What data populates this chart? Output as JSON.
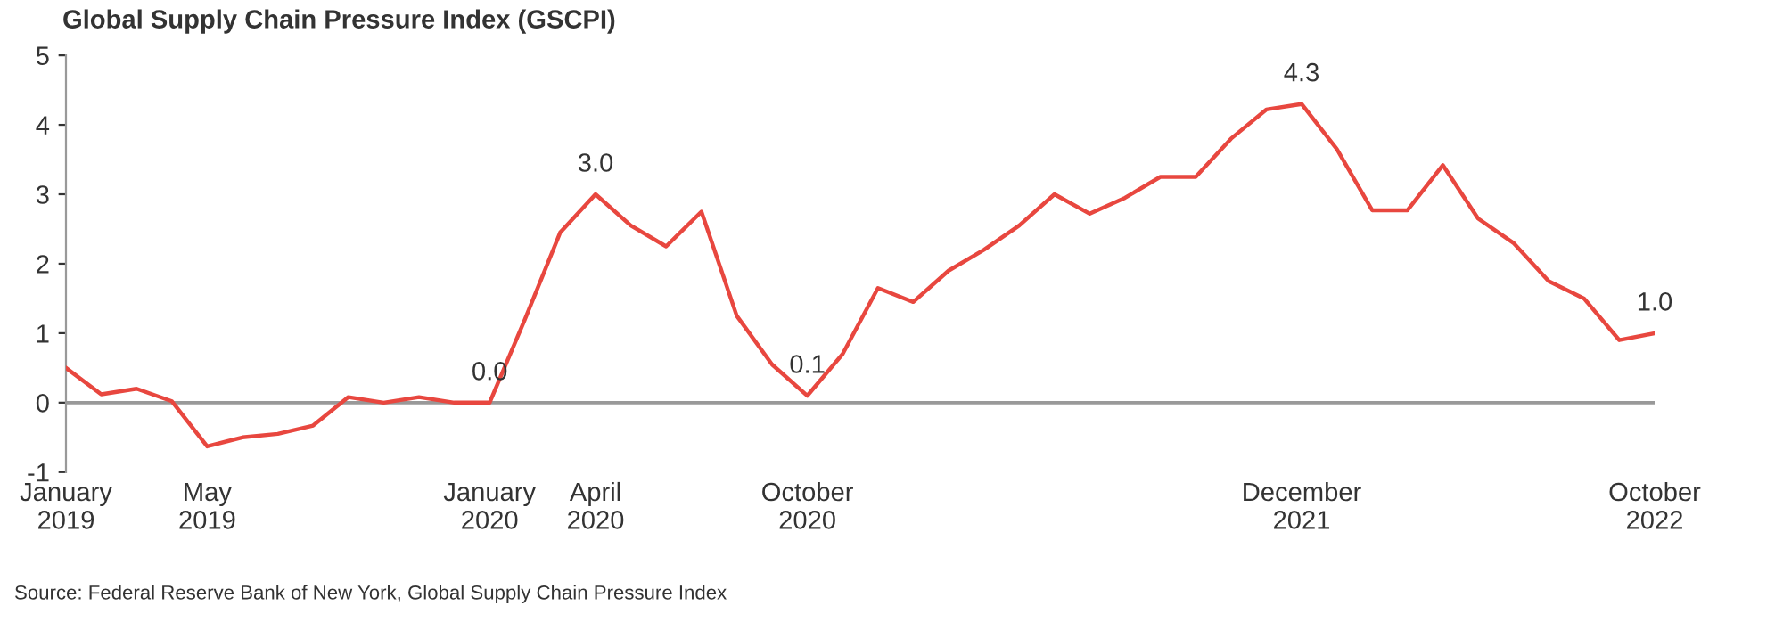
{
  "chart_data": {
    "type": "line",
    "title": "Global Supply Chain Pressure Index (GSCPI)",
    "categories": [
      "January\n2019",
      null,
      null,
      null,
      "May\n2019",
      null,
      null,
      null,
      null,
      null,
      null,
      null,
      "January\n2020",
      null,
      null,
      "April\n2020",
      null,
      null,
      null,
      null,
      null,
      "October\n2020",
      null,
      null,
      null,
      null,
      null,
      null,
      null,
      null,
      null,
      null,
      null,
      null,
      null,
      "December\n2021",
      null,
      null,
      null,
      null,
      null,
      null,
      null,
      null,
      null,
      "October\n2022"
    ],
    "series": [
      {
        "color": "#e8473f",
        "values": [
          0.5,
          0.12,
          0.2,
          0.02,
          -0.63,
          -0.5,
          -0.45,
          -0.33,
          0.08,
          0.0,
          0.08,
          0.0,
          0.0,
          1.2,
          2.45,
          3.0,
          2.55,
          2.25,
          2.75,
          1.25,
          0.55,
          0.1,
          0.7,
          1.65,
          1.45,
          1.9,
          2.2,
          2.55,
          3.0,
          2.72,
          2.95,
          3.25,
          3.25,
          3.8,
          4.22,
          4.3,
          3.65,
          2.77,
          2.77,
          3.42,
          2.65,
          2.3,
          1.75,
          1.5,
          0.9,
          1.0
        ],
        "value_labels": [
          null,
          null,
          null,
          null,
          null,
          null,
          null,
          null,
          null,
          null,
          null,
          null,
          "0.0",
          null,
          null,
          "3.0",
          null,
          null,
          null,
          null,
          null,
          "0.1",
          null,
          null,
          null,
          null,
          null,
          null,
          null,
          null,
          null,
          null,
          null,
          null,
          null,
          "4.3",
          null,
          null,
          null,
          null,
          null,
          null,
          null,
          null,
          null,
          "1.0"
        ]
      }
    ],
    "ylim": [
      -1,
      5
    ],
    "yticks": [
      -1,
      0,
      1,
      2,
      3,
      4,
      5
    ],
    "ref_lines": [
      {
        "axis": "y",
        "value": 0,
        "color": "#999999"
      }
    ],
    "grid": false,
    "legend": false,
    "marker": "none",
    "line_style": "solid",
    "annotations": [
      "Source: Federal Reserve Bank of New York, Global Supply Chain Pressure Index"
    ]
  }
}
